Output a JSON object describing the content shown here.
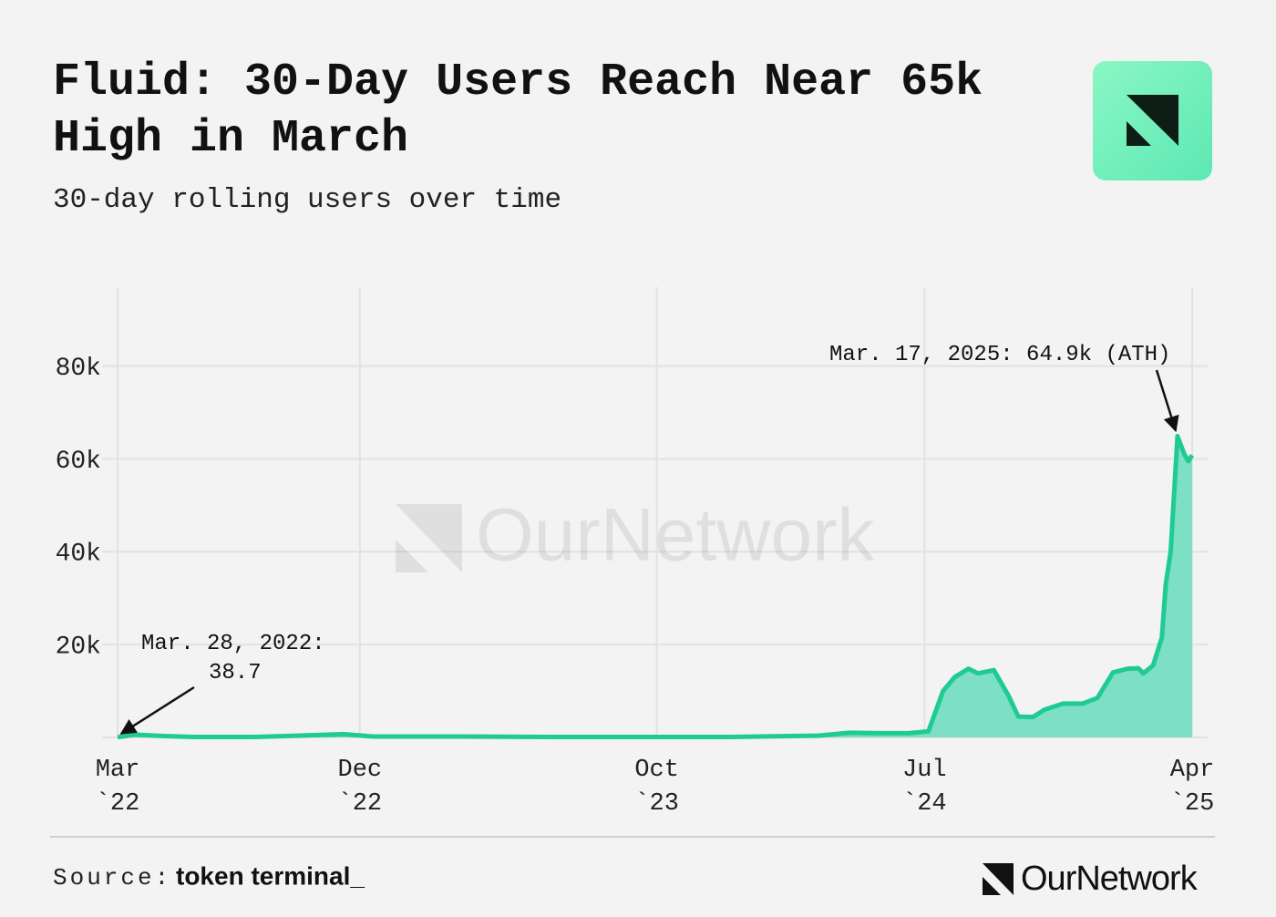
{
  "chart_data": {
    "type": "area-line",
    "title": "Fluid: 30-Day Users Reach Near 65k High in March",
    "subtitle": "30-day rolling users over time",
    "color": "#1fcb95",
    "fill_color": "#7ddfc3",
    "x": [
      "2022-03-28",
      "2022-04-15",
      "2022-05-15",
      "2022-06-15",
      "2022-08-15",
      "2022-10-15",
      "2022-11-15",
      "2022-12-15",
      "2023-03-15",
      "2023-06-15",
      "2023-09-15",
      "2023-12-15",
      "2024-03-15",
      "2024-04-15",
      "2024-05-15",
      "2024-06-15",
      "2024-07-05",
      "2024-07-20",
      "2024-08-01",
      "2024-08-15",
      "2024-08-25",
      "2024-09-10",
      "2024-09-25",
      "2024-10-05",
      "2024-10-20",
      "2024-11-01",
      "2024-11-20",
      "2024-12-10",
      "2024-12-25",
      "2025-01-10",
      "2025-01-25",
      "2025-02-05",
      "2025-02-10",
      "2025-02-20",
      "2025-03-01",
      "2025-03-05",
      "2025-03-10",
      "2025-03-17",
      "2025-03-24",
      "2025-03-28",
      "2025-04-01"
    ],
    "values": [
      38.7,
      600,
      300,
      100,
      100,
      500,
      700,
      200,
      200,
      100,
      100,
      100,
      400,
      1000,
      900,
      900,
      1300,
      10000,
      13000,
      14800,
      13800,
      14500,
      9000,
      4500,
      4400,
      6000,
      7300,
      7300,
      8500,
      14000,
      14800,
      14900,
      13800,
      15500,
      21500,
      33000,
      40000,
      64900,
      61000,
      59500,
      60800
    ],
    "xlim": [
      "2022-03-28",
      "2025-04-01"
    ],
    "xticks": [
      {
        "value": "2022-03-28",
        "label": [
          "Mar",
          "`22"
        ]
      },
      {
        "value": "2022-12-01",
        "label": [
          "Dec",
          "`22"
        ]
      },
      {
        "value": "2023-10-01",
        "label": [
          "Oct",
          "`23"
        ]
      },
      {
        "value": "2024-07-01",
        "label": [
          "Jul",
          "`24"
        ]
      },
      {
        "value": "2025-04-01",
        "label": [
          "Apr",
          "`25"
        ]
      }
    ],
    "ylim": [
      0,
      97000
    ],
    "yticks": [
      {
        "value": 20000,
        "label": "20k"
      },
      {
        "value": 40000,
        "label": "40k"
      },
      {
        "value": 60000,
        "label": "60k"
      },
      {
        "value": 80000,
        "label": "80k"
      }
    ],
    "grid": true,
    "annotations": [
      {
        "point": 0,
        "text": [
          "Mar. 28, 2022:",
          "38.7"
        ]
      },
      {
        "point": 37,
        "text": [
          "Mar. 17, 2025: 64.9k (ATH)"
        ]
      }
    ],
    "watermark": "OurNetwork",
    "source_label": "Source:",
    "source_name": "token terminal_",
    "brand": "OurNetwork"
  }
}
